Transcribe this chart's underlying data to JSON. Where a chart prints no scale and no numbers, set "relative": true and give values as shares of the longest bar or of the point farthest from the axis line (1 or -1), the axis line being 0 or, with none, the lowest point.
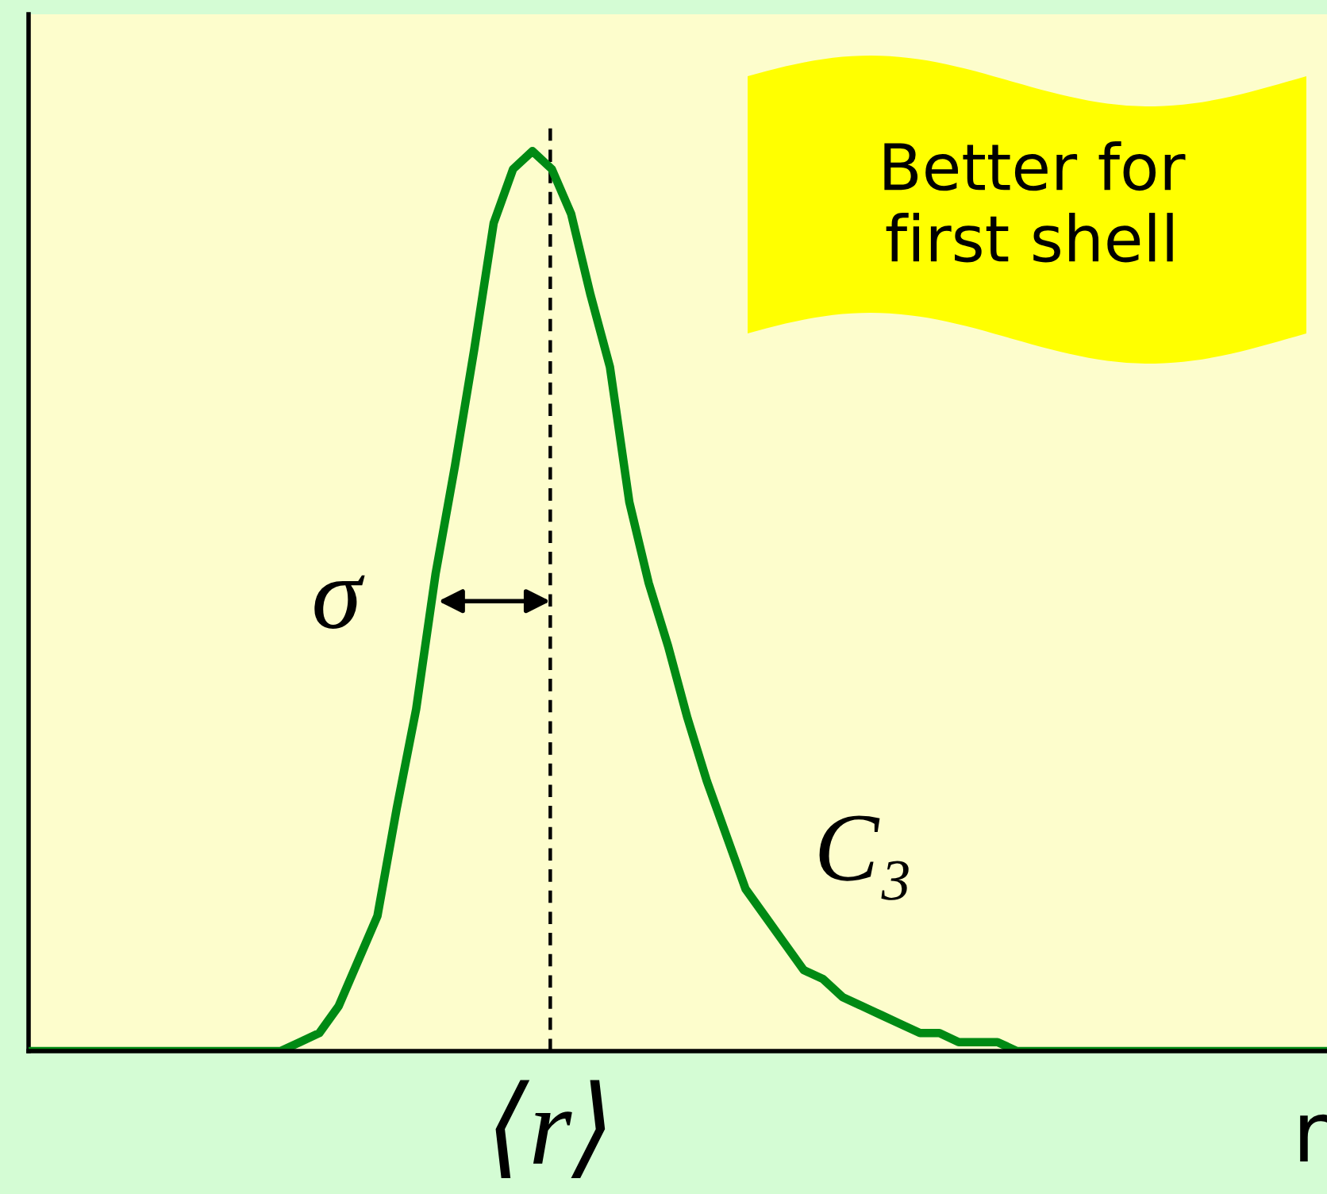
{
  "chart_data": {
    "type": "line",
    "relative": true,
    "xlabel": "r",
    "categories": [
      null,
      null,
      null,
      null,
      null,
      null,
      null,
      null,
      null,
      null,
      null,
      null,
      null,
      null,
      null,
      null,
      null,
      null,
      null,
      null,
      null,
      null,
      null,
      null,
      null,
      null,
      null,
      null,
      null,
      null,
      null,
      null,
      null,
      null,
      null,
      null,
      null,
      null,
      null,
      null,
      null,
      null,
      null,
      null,
      null,
      null,
      null,
      null,
      null,
      null,
      null,
      null,
      null,
      null,
      null,
      null,
      null,
      null,
      null,
      null,
      null,
      null,
      null,
      null,
      null,
      null,
      null,
      null
    ],
    "series": [
      {
        "name": "C₃",
        "color": "#008a14",
        "values": [
          0,
          0,
          0,
          0,
          0,
          0,
          0,
          0,
          0,
          0,
          0,
          0,
          0,
          0,
          0.01,
          0.02,
          0.05,
          0.1,
          0.15,
          0.27,
          0.38,
          0.53,
          0.65,
          0.78,
          0.92,
          0.98,
          1.0,
          0.98,
          0.93,
          0.84,
          0.76,
          0.61,
          0.52,
          0.45,
          0.37,
          0.3,
          0.24,
          0.18,
          0.15,
          0.12,
          0.09,
          0.08,
          0.06,
          0.05,
          0.04,
          0.03,
          0.02,
          0.02,
          0.01,
          0.01,
          0.01,
          0,
          0,
          0,
          0,
          0,
          0,
          0,
          0,
          0,
          0,
          0,
          0,
          0,
          0,
          0,
          0,
          0
        ]
      }
    ],
    "annotations": [
      "σ",
      "⟨r⟩",
      "Better for\nfirst shell"
    ]
  }
}
